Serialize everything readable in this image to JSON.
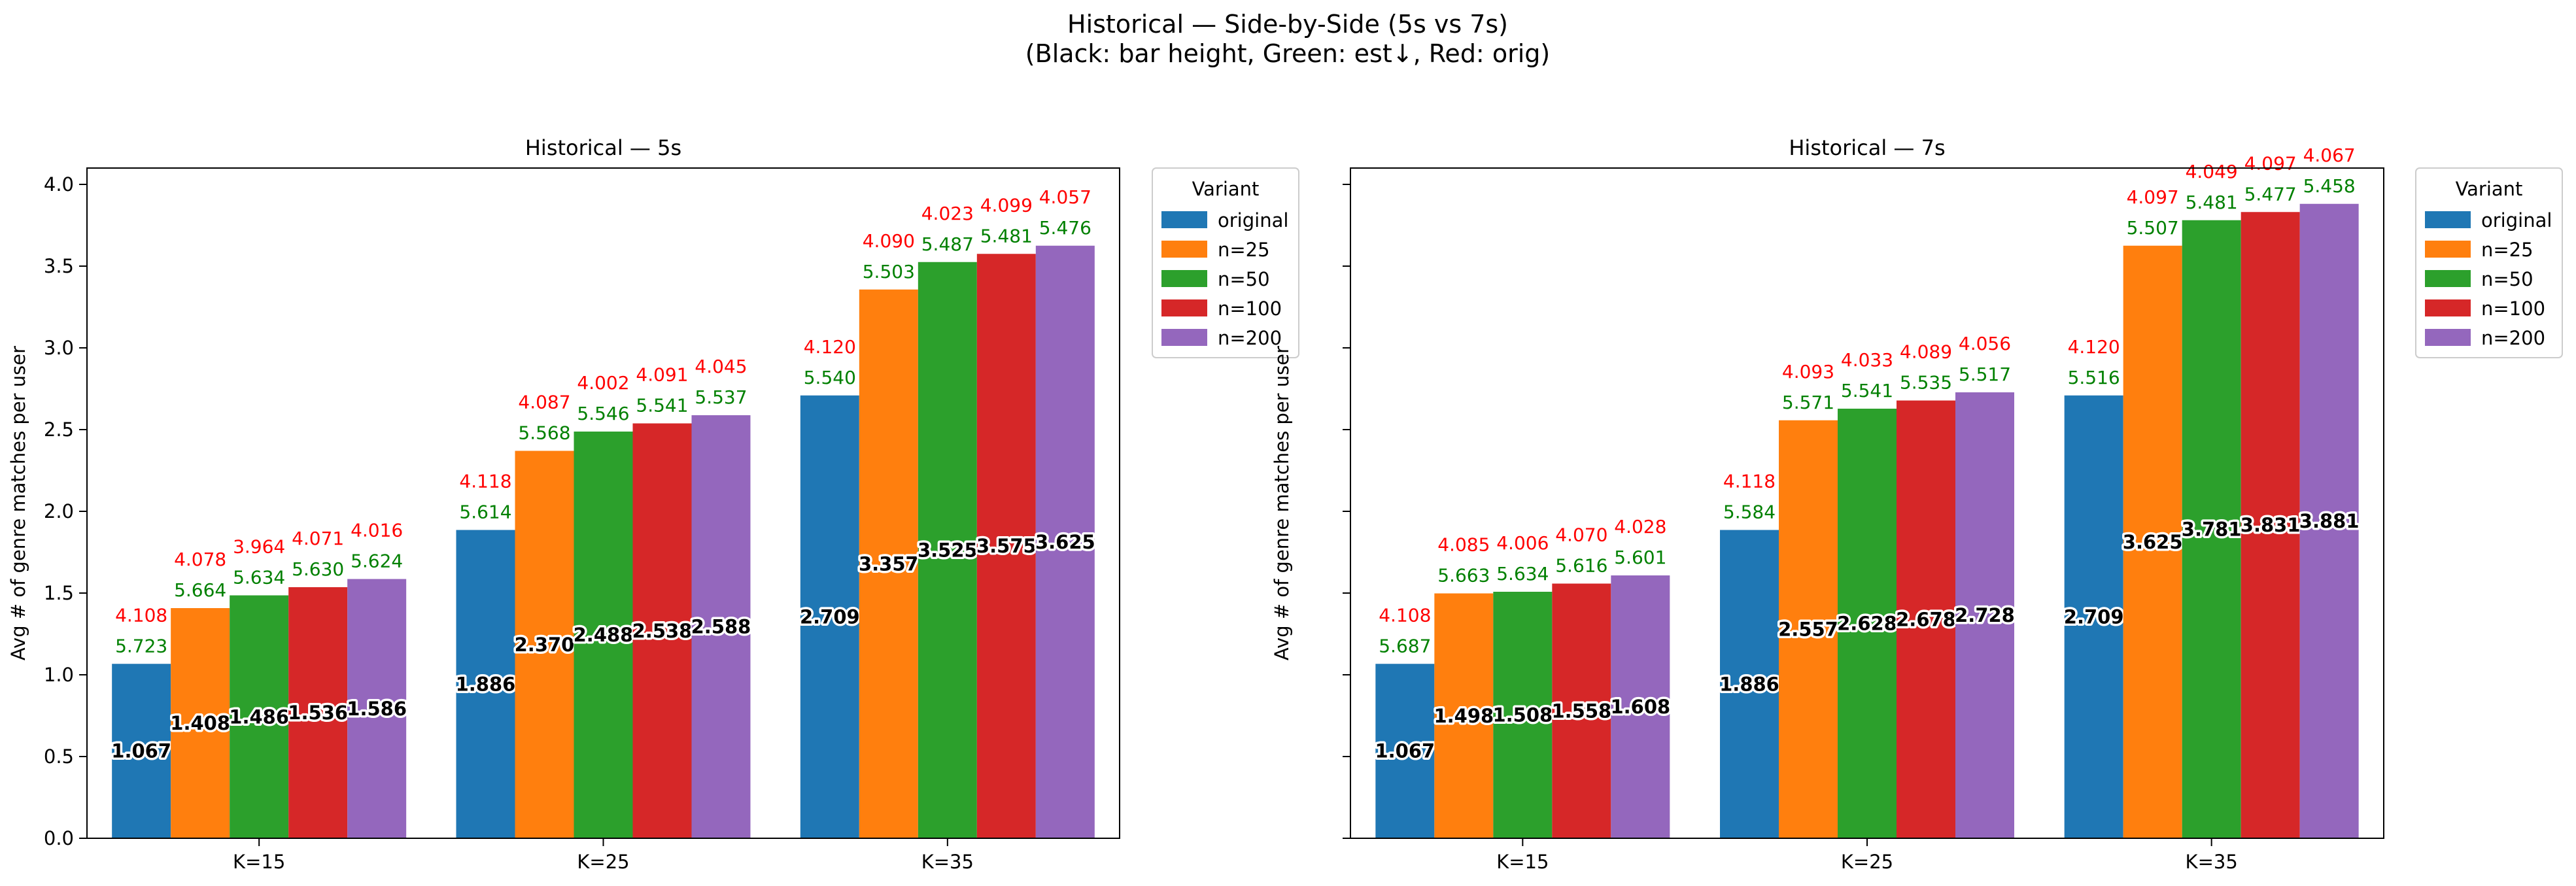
{
  "figure": {
    "title_line1": "Historical — Side-by-Side (5s vs 7s)",
    "title_line2": "(Black: bar height, Green: est↓, Red: orig)"
  },
  "colors": {
    "original": "#1f77b4",
    "n=25": "#ff7f0e",
    "n=50": "#2ca02c",
    "n=100": "#d62728",
    "n=200": "#9467bd",
    "est_label": "#008000",
    "orig_label": "#ff0000"
  },
  "chart_data": [
    {
      "type": "bar",
      "title": "Historical — 5s",
      "xlabel": "",
      "ylabel": "Avg # of genre matches per user",
      "categories": [
        "K=15",
        "K=25",
        "K=35"
      ],
      "ylim": [
        0,
        4.1
      ],
      "yticks": [
        "0.0",
        "0.5",
        "1.0",
        "1.5",
        "2.0",
        "2.5",
        "3.0",
        "3.5",
        "4.0"
      ],
      "legend": {
        "title": "Variant",
        "placement": "outside upper right"
      },
      "series": [
        {
          "name": "original",
          "values": [
            1.067,
            1.886,
            2.709
          ],
          "est_labels": [
            "5.723",
            "5.614",
            "5.540"
          ],
          "orig_labels": [
            "4.108",
            "4.118",
            "4.120"
          ]
        },
        {
          "name": "n=25",
          "values": [
            1.408,
            2.37,
            3.357
          ],
          "est_labels": [
            "5.664",
            "5.568",
            "5.503"
          ],
          "orig_labels": [
            "4.078",
            "4.087",
            "4.090"
          ]
        },
        {
          "name": "n=50",
          "values": [
            1.486,
            2.488,
            3.525
          ],
          "est_labels": [
            "5.634",
            "5.546",
            "5.487"
          ],
          "orig_labels": [
            "3.964",
            "4.002",
            "4.023"
          ]
        },
        {
          "name": "n=100",
          "values": [
            1.536,
            2.538,
            3.575
          ],
          "est_labels": [
            "5.630",
            "5.541",
            "5.481"
          ],
          "orig_labels": [
            "4.071",
            "4.091",
            "4.099"
          ]
        },
        {
          "name": "n=200",
          "values": [
            1.586,
            2.588,
            3.625
          ],
          "est_labels": [
            "5.624",
            "5.537",
            "5.476"
          ],
          "orig_labels": [
            "4.016",
            "4.045",
            "4.057"
          ]
        }
      ]
    },
    {
      "type": "bar",
      "title": "Historical — 7s",
      "xlabel": "",
      "ylabel": "Avg # of genre matches per user",
      "categories": [
        "K=15",
        "K=25",
        "K=35"
      ],
      "ylim": [
        0,
        4.1
      ],
      "yticks": [
        "0.0",
        "0.5",
        "1.0",
        "1.5",
        "2.0",
        "2.5",
        "3.0",
        "3.5",
        "4.0"
      ],
      "legend": {
        "title": "Variant",
        "placement": "outside upper right"
      },
      "series": [
        {
          "name": "original",
          "values": [
            1.067,
            1.886,
            2.709
          ],
          "est_labels": [
            "5.687",
            "5.584",
            "5.516"
          ],
          "orig_labels": [
            "4.108",
            "4.118",
            "4.120"
          ]
        },
        {
          "name": "n=25",
          "values": [
            1.498,
            2.557,
            3.625
          ],
          "est_labels": [
            "5.663",
            "5.571",
            "5.507"
          ],
          "orig_labels": [
            "4.085",
            "4.093",
            "4.097"
          ]
        },
        {
          "name": "n=50",
          "values": [
            1.508,
            2.628,
            3.781
          ],
          "est_labels": [
            "5.634",
            "5.541",
            "5.481"
          ],
          "orig_labels": [
            "4.006",
            "4.033",
            "4.049"
          ]
        },
        {
          "name": "n=100",
          "values": [
            1.558,
            2.678,
            3.831
          ],
          "est_labels": [
            "5.616",
            "5.535",
            "5.477"
          ],
          "orig_labels": [
            "4.070",
            "4.089",
            "4.097"
          ]
        },
        {
          "name": "n=200",
          "values": [
            1.608,
            2.728,
            3.881
          ],
          "est_labels": [
            "5.601",
            "5.517",
            "5.458"
          ],
          "orig_labels": [
            "4.028",
            "4.056",
            "4.067"
          ]
        }
      ]
    }
  ]
}
